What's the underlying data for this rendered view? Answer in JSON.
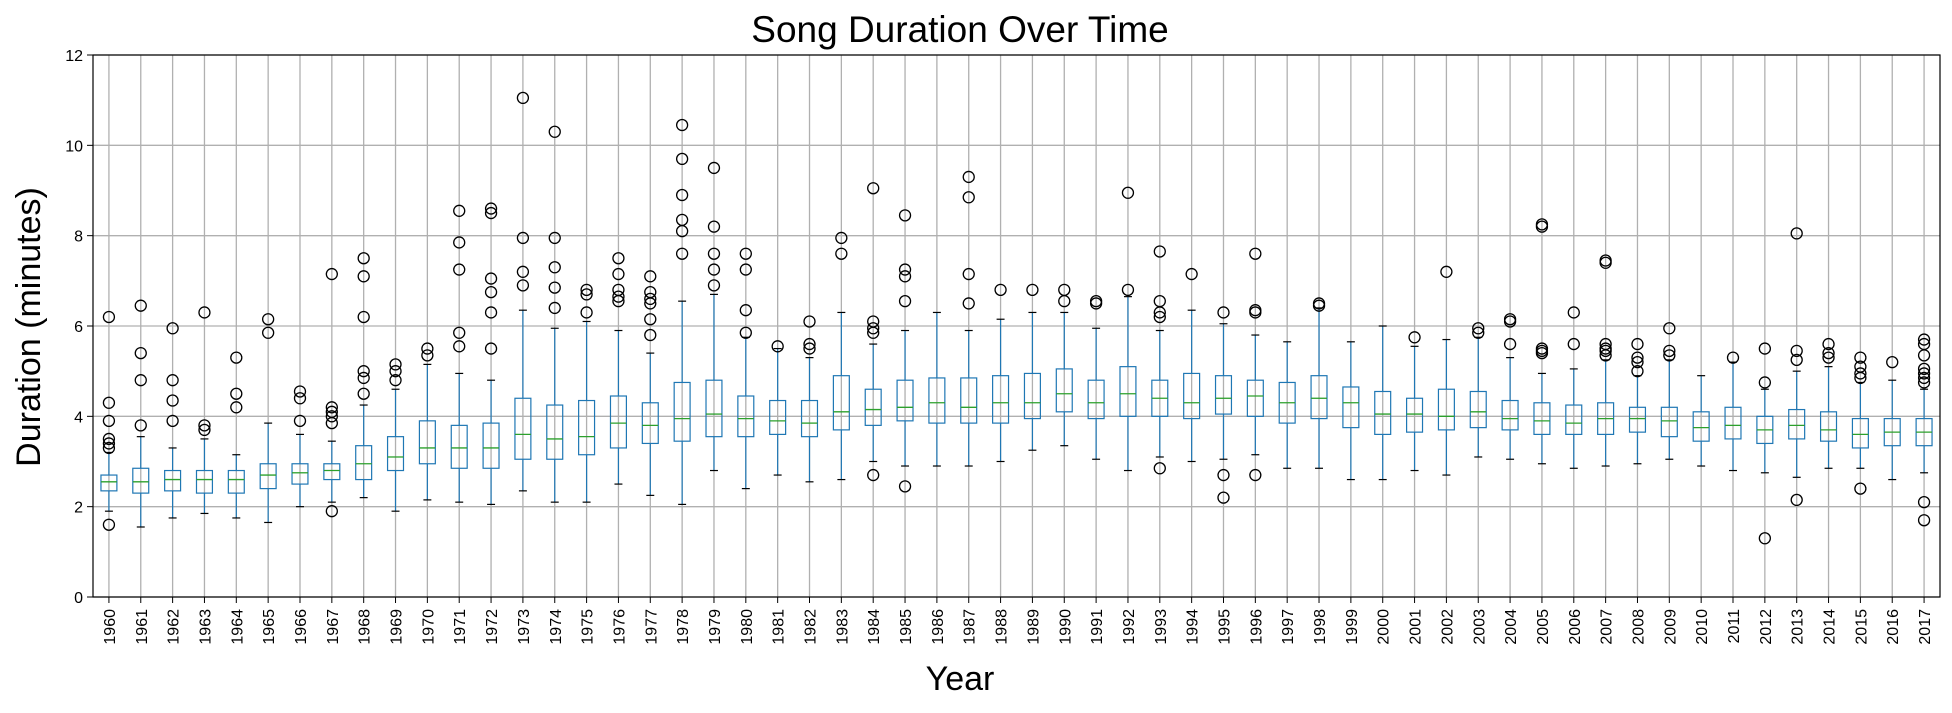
{
  "chart_data": {
    "type": "box",
    "title": "Song Duration Over Time",
    "xlabel": "Year",
    "ylabel": "Duration (minutes)",
    "ylim": [
      0,
      12
    ],
    "yticks": [
      0,
      2,
      4,
      6,
      8,
      10,
      12
    ],
    "grid": true,
    "legend": "none",
    "colors": {
      "box": "#1f77b4",
      "median": "#2ca02c",
      "outlier": "#000000",
      "grid": "#b0b0b0"
    },
    "categories": [
      "1960",
      "1961",
      "1962",
      "1963",
      "1964",
      "1965",
      "1966",
      "1967",
      "1968",
      "1969",
      "1970",
      "1971",
      "1972",
      "1973",
      "1974",
      "1975",
      "1976",
      "1977",
      "1978",
      "1979",
      "1980",
      "1981",
      "1982",
      "1983",
      "1984",
      "1985",
      "1986",
      "1987",
      "1988",
      "1989",
      "1990",
      "1991",
      "1992",
      "1993",
      "1994",
      "1995",
      "1996",
      "1997",
      "1998",
      "1999",
      "2000",
      "2001",
      "2002",
      "2003",
      "2004",
      "2005",
      "2006",
      "2007",
      "2008",
      "2009",
      "2010",
      "2011",
      "2012",
      "2013",
      "2014",
      "2015",
      "2016",
      "2017"
    ],
    "boxes": [
      {
        "whislo": 1.9,
        "q1": 2.35,
        "med": 2.55,
        "q3": 2.7,
        "whishi": 3.2,
        "fliers": [
          1.6,
          3.3,
          3.4,
          3.5,
          3.9,
          4.3,
          6.2
        ]
      },
      {
        "whislo": 1.55,
        "q1": 2.3,
        "med": 2.55,
        "q3": 2.85,
        "whishi": 3.55,
        "fliers": [
          3.8,
          4.8,
          5.4,
          6.45
        ]
      },
      {
        "whislo": 1.75,
        "q1": 2.35,
        "med": 2.6,
        "q3": 2.8,
        "whishi": 3.3,
        "fliers": [
          3.9,
          4.35,
          4.8,
          5.95
        ]
      },
      {
        "whislo": 1.85,
        "q1": 2.3,
        "med": 2.6,
        "q3": 2.8,
        "whishi": 3.5,
        "fliers": [
          3.7,
          3.8,
          6.3
        ]
      },
      {
        "whislo": 1.75,
        "q1": 2.3,
        "med": 2.6,
        "q3": 2.8,
        "whishi": 3.15,
        "fliers": [
          4.2,
          4.5,
          5.3
        ]
      },
      {
        "whislo": 1.65,
        "q1": 2.4,
        "med": 2.7,
        "q3": 2.95,
        "whishi": 3.85,
        "fliers": [
          5.85,
          6.15
        ]
      },
      {
        "whislo": 2.0,
        "q1": 2.5,
        "med": 2.75,
        "q3": 2.95,
        "whishi": 3.6,
        "fliers": [
          3.9,
          4.4,
          4.55
        ]
      },
      {
        "whislo": 2.1,
        "q1": 2.6,
        "med": 2.8,
        "q3": 2.95,
        "whishi": 3.45,
        "fliers": [
          1.9,
          3.85,
          4.0,
          4.1,
          4.2,
          7.15
        ]
      },
      {
        "whislo": 2.2,
        "q1": 2.6,
        "med": 2.95,
        "q3": 3.35,
        "whishi": 4.25,
        "fliers": [
          4.5,
          4.85,
          5.0,
          6.2,
          7.1,
          7.5
        ]
      },
      {
        "whislo": 1.9,
        "q1": 2.8,
        "med": 3.1,
        "q3": 3.55,
        "whishi": 4.6,
        "fliers": [
          4.8,
          5.0,
          5.15
        ]
      },
      {
        "whislo": 2.15,
        "q1": 2.95,
        "med": 3.3,
        "q3": 3.9,
        "whishi": 5.15,
        "fliers": [
          5.35,
          5.5
        ]
      },
      {
        "whislo": 2.1,
        "q1": 2.85,
        "med": 3.3,
        "q3": 3.8,
        "whishi": 4.95,
        "fliers": [
          5.55,
          5.85,
          7.25,
          7.85,
          8.55
        ]
      },
      {
        "whislo": 2.05,
        "q1": 2.85,
        "med": 3.3,
        "q3": 3.85,
        "whishi": 4.8,
        "fliers": [
          5.5,
          6.3,
          6.75,
          7.05,
          8.5,
          8.6
        ]
      },
      {
        "whislo": 2.35,
        "q1": 3.05,
        "med": 3.6,
        "q3": 4.4,
        "whishi": 6.35,
        "fliers": [
          6.9,
          7.2,
          7.95,
          11.05
        ]
      },
      {
        "whislo": 2.1,
        "q1": 3.05,
        "med": 3.5,
        "q3": 4.25,
        "whishi": 5.95,
        "fliers": [
          6.4,
          6.85,
          7.3,
          7.95,
          10.3
        ]
      },
      {
        "whislo": 2.1,
        "q1": 3.15,
        "med": 3.55,
        "q3": 4.35,
        "whishi": 6.1,
        "fliers": [
          6.3,
          6.7,
          6.8
        ]
      },
      {
        "whislo": 2.5,
        "q1": 3.3,
        "med": 3.85,
        "q3": 4.45,
        "whishi": 5.9,
        "fliers": [
          6.55,
          6.65,
          6.8,
          7.15,
          7.5
        ]
      },
      {
        "whislo": 2.25,
        "q1": 3.4,
        "med": 3.8,
        "q3": 4.3,
        "whishi": 5.4,
        "fliers": [
          5.8,
          6.15,
          6.5,
          6.6,
          6.75,
          7.1
        ]
      },
      {
        "whislo": 2.05,
        "q1": 3.45,
        "med": 3.95,
        "q3": 4.75,
        "whishi": 6.55,
        "fliers": [
          7.6,
          8.1,
          8.35,
          8.9,
          9.7,
          10.45
        ]
      },
      {
        "whislo": 2.8,
        "q1": 3.55,
        "med": 4.05,
        "q3": 4.8,
        "whishi": 6.7,
        "fliers": [
          6.9,
          7.25,
          7.6,
          8.2,
          9.5
        ]
      },
      {
        "whislo": 2.4,
        "q1": 3.55,
        "med": 3.95,
        "q3": 4.45,
        "whishi": 5.75,
        "fliers": [
          5.85,
          6.35,
          7.25,
          7.6
        ]
      },
      {
        "whislo": 2.7,
        "q1": 3.6,
        "med": 3.9,
        "q3": 4.35,
        "whishi": 5.5,
        "fliers": [
          5.55
        ]
      },
      {
        "whislo": 2.55,
        "q1": 3.55,
        "med": 3.85,
        "q3": 4.35,
        "whishi": 5.3,
        "fliers": [
          5.5,
          5.6,
          6.1
        ]
      },
      {
        "whislo": 2.6,
        "q1": 3.7,
        "med": 4.1,
        "q3": 4.9,
        "whishi": 6.3,
        "fliers": [
          7.6,
          7.95
        ]
      },
      {
        "whislo": 3.0,
        "q1": 3.8,
        "med": 4.15,
        "q3": 4.6,
        "whishi": 5.6,
        "fliers": [
          2.7,
          5.85,
          5.95,
          6.1,
          9.05
        ]
      },
      {
        "whislo": 2.9,
        "q1": 3.9,
        "med": 4.2,
        "q3": 4.8,
        "whishi": 5.9,
        "fliers": [
          2.45,
          6.55,
          7.1,
          7.25,
          8.45
        ]
      },
      {
        "whislo": 2.9,
        "q1": 3.85,
        "med": 4.3,
        "q3": 4.85,
        "whishi": 6.3,
        "fliers": []
      },
      {
        "whislo": 2.9,
        "q1": 3.85,
        "med": 4.2,
        "q3": 4.85,
        "whishi": 5.9,
        "fliers": [
          6.5,
          7.15,
          8.85,
          9.3
        ]
      },
      {
        "whislo": 3.0,
        "q1": 3.85,
        "med": 4.3,
        "q3": 4.9,
        "whishi": 6.15,
        "fliers": [
          6.8
        ]
      },
      {
        "whislo": 3.25,
        "q1": 3.95,
        "med": 4.3,
        "q3": 4.95,
        "whishi": 6.3,
        "fliers": [
          6.8
        ]
      },
      {
        "whislo": 3.35,
        "q1": 4.1,
        "med": 4.5,
        "q3": 5.05,
        "whishi": 6.3,
        "fliers": [
          6.55,
          6.8
        ]
      },
      {
        "whislo": 3.05,
        "q1": 3.95,
        "med": 4.3,
        "q3": 4.8,
        "whishi": 5.95,
        "fliers": [
          6.5,
          6.55
        ]
      },
      {
        "whislo": 2.8,
        "q1": 4.0,
        "med": 4.5,
        "q3": 5.1,
        "whishi": 6.65,
        "fliers": [
          6.8,
          8.95
        ]
      },
      {
        "whislo": 3.1,
        "q1": 4.0,
        "med": 4.4,
        "q3": 4.8,
        "whishi": 5.9,
        "fliers": [
          2.85,
          6.2,
          6.3,
          6.55,
          7.65
        ]
      },
      {
        "whislo": 3.0,
        "q1": 3.95,
        "med": 4.3,
        "q3": 4.95,
        "whishi": 6.35,
        "fliers": [
          7.15
        ]
      },
      {
        "whislo": 3.05,
        "q1": 4.05,
        "med": 4.4,
        "q3": 4.9,
        "whishi": 6.05,
        "fliers": [
          2.2,
          2.7,
          6.3
        ]
      },
      {
        "whislo": 3.15,
        "q1": 4.0,
        "med": 4.45,
        "q3": 4.8,
        "whishi": 5.8,
        "fliers": [
          2.7,
          6.3,
          6.35,
          7.6
        ]
      },
      {
        "whislo": 2.85,
        "q1": 3.85,
        "med": 4.3,
        "q3": 4.75,
        "whishi": 5.65,
        "fliers": []
      },
      {
        "whislo": 2.85,
        "q1": 3.95,
        "med": 4.4,
        "q3": 4.9,
        "whishi": 6.4,
        "fliers": [
          6.45,
          6.5
        ]
      },
      {
        "whislo": 2.6,
        "q1": 3.75,
        "med": 4.3,
        "q3": 4.65,
        "whishi": 5.65,
        "fliers": []
      },
      {
        "whislo": 2.6,
        "q1": 3.6,
        "med": 4.05,
        "q3": 4.55,
        "whishi": 6.0,
        "fliers": []
      },
      {
        "whislo": 2.8,
        "q1": 3.65,
        "med": 4.05,
        "q3": 4.4,
        "whishi": 5.55,
        "fliers": [
          5.75
        ]
      },
      {
        "whislo": 2.7,
        "q1": 3.7,
        "med": 4.0,
        "q3": 4.6,
        "whishi": 5.7,
        "fliers": [
          7.2
        ]
      },
      {
        "whislo": 3.1,
        "q1": 3.75,
        "med": 4.1,
        "q3": 4.55,
        "whishi": 5.75,
        "fliers": [
          5.85,
          5.95
        ]
      },
      {
        "whislo": 3.05,
        "q1": 3.7,
        "med": 3.95,
        "q3": 4.35,
        "whishi": 5.3,
        "fliers": [
          5.6,
          6.1,
          6.15
        ]
      },
      {
        "whislo": 2.95,
        "q1": 3.6,
        "med": 3.9,
        "q3": 4.3,
        "whishi": 4.95,
        "fliers": [
          5.4,
          5.45,
          5.5,
          8.2,
          8.25
        ]
      },
      {
        "whislo": 2.85,
        "q1": 3.6,
        "med": 3.85,
        "q3": 4.25,
        "whishi": 5.05,
        "fliers": [
          5.6,
          6.3
        ]
      },
      {
        "whislo": 2.9,
        "q1": 3.6,
        "med": 3.95,
        "q3": 4.3,
        "whishi": 5.25,
        "fliers": [
          5.35,
          5.45,
          5.5,
          5.6,
          7.4,
          7.45
        ]
      },
      {
        "whislo": 2.95,
        "q1": 3.65,
        "med": 3.95,
        "q3": 4.2,
        "whishi": 4.9,
        "fliers": [
          5.0,
          5.2,
          5.3,
          5.6
        ]
      },
      {
        "whislo": 3.05,
        "q1": 3.55,
        "med": 3.9,
        "q3": 4.2,
        "whishi": 5.25,
        "fliers": [
          5.35,
          5.45,
          5.95
        ]
      },
      {
        "whislo": 2.9,
        "q1": 3.45,
        "med": 3.75,
        "q3": 4.1,
        "whishi": 4.9,
        "fliers": []
      },
      {
        "whislo": 2.8,
        "q1": 3.5,
        "med": 3.8,
        "q3": 4.2,
        "whishi": 5.2,
        "fliers": [
          5.3
        ]
      },
      {
        "whislo": 2.75,
        "q1": 3.4,
        "med": 3.7,
        "q3": 4.0,
        "whishi": 4.6,
        "fliers": [
          1.3,
          4.75,
          5.5
        ]
      },
      {
        "whislo": 2.65,
        "q1": 3.5,
        "med": 3.8,
        "q3": 4.15,
        "whishi": 5.0,
        "fliers": [
          2.15,
          5.25,
          5.45,
          8.05
        ]
      },
      {
        "whislo": 2.85,
        "q1": 3.45,
        "med": 3.7,
        "q3": 4.1,
        "whishi": 5.1,
        "fliers": [
          5.3,
          5.4,
          5.6
        ]
      },
      {
        "whislo": 2.85,
        "q1": 3.3,
        "med": 3.6,
        "q3": 3.95,
        "whishi": 4.75,
        "fliers": [
          2.4,
          4.85,
          4.95,
          5.1,
          5.3
        ]
      },
      {
        "whislo": 2.6,
        "q1": 3.35,
        "med": 3.65,
        "q3": 3.95,
        "whishi": 4.8,
        "fliers": [
          5.2
        ]
      },
      {
        "whislo": 2.75,
        "q1": 3.35,
        "med": 3.65,
        "q3": 3.95,
        "whishi": 4.6,
        "fliers": [
          1.7,
          2.1,
          4.75,
          4.85,
          4.95,
          5.05,
          5.35,
          5.6,
          5.7
        ]
      }
    ]
  }
}
